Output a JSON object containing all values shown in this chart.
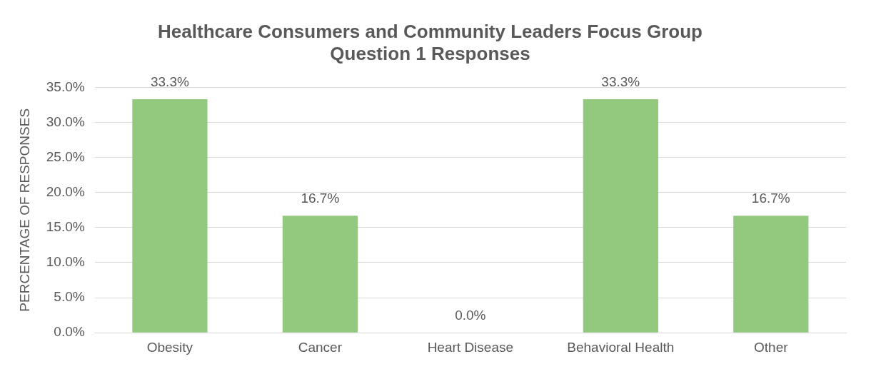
{
  "chart_data": {
    "type": "bar",
    "title": "Healthcare Consumers and Community Leaders Focus Group\nQuestion 1 Responses",
    "ylabel": "PERCENTAGE OF RESPONSES",
    "categories": [
      "Obesity",
      "Cancer",
      "Heart Disease",
      "Behavioral Health",
      "Other"
    ],
    "values": [
      33.3,
      16.7,
      0,
      33.3,
      16.7
    ],
    "value_labels": [
      "33.3%",
      "16.7%",
      "0.0%",
      "33.3%",
      "16.7%"
    ],
    "color": "#93c97f",
    "ylim": [
      0,
      35
    ],
    "yticks": [
      {
        "value": 0,
        "label": "0.0%"
      },
      {
        "value": 5,
        "label": "5.0%"
      },
      {
        "value": 10,
        "label": "10.0%"
      },
      {
        "value": 15,
        "label": "15.0%"
      },
      {
        "value": 20,
        "label": "20.0%"
      },
      {
        "value": 25,
        "label": "25.0%"
      },
      {
        "value": 30,
        "label": "30.0%"
      },
      {
        "value": 35,
        "label": "35.0%"
      }
    ],
    "grid": "y",
    "legend": false
  }
}
